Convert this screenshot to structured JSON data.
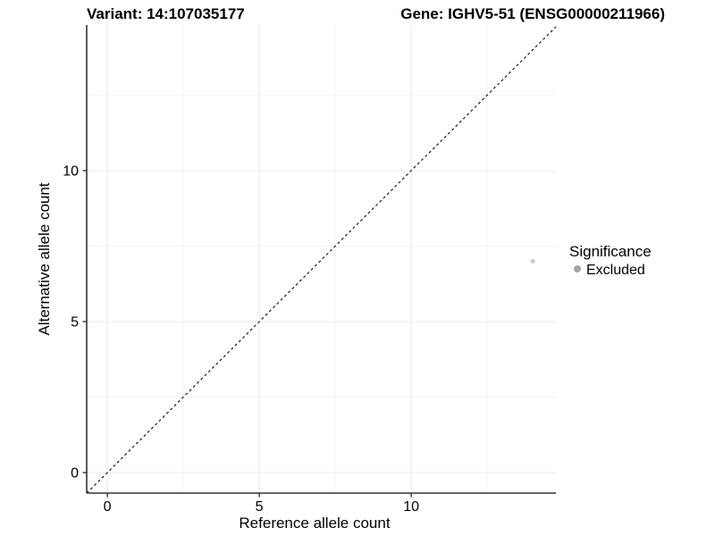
{
  "header": {
    "variant_title": "Variant: 14:107035177",
    "gene_title": "Gene: IGHV5-51 (ENSG00000211966)"
  },
  "chart_data": {
    "type": "scatter",
    "title": "Variant: 14:107035177 — Gene: IGHV5-51 (ENSG00000211966)",
    "xlabel": "Reference allele count",
    "ylabel": "Alternative allele count",
    "xlim": [
      -0.68,
      14.76
    ],
    "ylim": [
      -0.68,
      14.82
    ],
    "x_major_ticks": [
      0,
      5,
      10
    ],
    "y_major_ticks": [
      0,
      5,
      10
    ],
    "x_minor_ticks": [
      2.5,
      7.5,
      12.5
    ],
    "y_minor_ticks": [
      2.5,
      7.5,
      12.5
    ],
    "grid": true,
    "series": [
      {
        "name": "Excluded",
        "points": [
          {
            "x": 14,
            "y": 7
          }
        ],
        "color": "#c9c9c9",
        "point_radius": 2.5
      }
    ],
    "identity_line": {
      "description": "dashed y = x reference line",
      "from": [
        -0.68,
        -0.68
      ],
      "to": [
        14.76,
        14.76
      ],
      "color": "#1a1a1a",
      "dash": "3,3"
    },
    "legend": {
      "title": "Significance",
      "position": "right",
      "entries": [
        {
          "label": "Excluded",
          "color": "#a4a4a4"
        }
      ]
    },
    "colors": {
      "axis_line": "#333333",
      "tick_mark": "#333333",
      "major_grid": "#ebebeb",
      "minor_grid": "#f4f4f4",
      "background": "#ffffff"
    }
  }
}
